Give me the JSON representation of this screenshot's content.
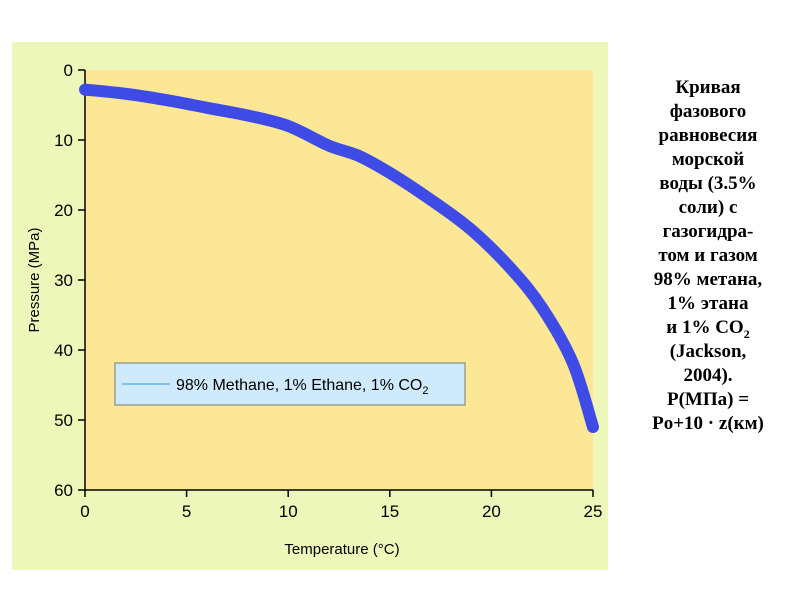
{
  "chart_data": {
    "type": "line",
    "xlabel": "Temperature (°C)",
    "ylabel": "Pressure (MPa)",
    "x_ticks": [
      0,
      5,
      10,
      15,
      20,
      25
    ],
    "y_ticks": [
      0,
      10,
      20,
      30,
      40,
      50,
      60
    ],
    "xlim": [
      0,
      25
    ],
    "ylim": [
      0,
      60
    ],
    "y_inverted": true,
    "grid": false,
    "legend_position": "lower-left",
    "legend_text_main": "98% Methane, 1% Ethane, 1% CO",
    "legend_text_sub": "2",
    "series": [
      {
        "name": "98% Methane, 1% Ethane, 1% CO2",
        "x": [
          0,
          2,
          4,
          6,
          8,
          10,
          12,
          13.5,
          15,
          17,
          19,
          21,
          22.5,
          24,
          25
        ],
        "y": [
          2.8,
          3.4,
          4.3,
          5.4,
          6.5,
          8.0,
          10.8,
          12.3,
          14.7,
          18.5,
          22.8,
          28.5,
          34.0,
          41.8,
          51.0
        ]
      }
    ],
    "colors": {
      "plot_background": "#fbe795",
      "figure_background": "#eef7ba",
      "line": "#3f4be6",
      "legend_background": "#cfeafb",
      "legend_line": "#7fc1ea"
    }
  },
  "caption": {
    "lines": [
      "Кривая",
      "фазового",
      "равновесия",
      "морской",
      "воды (3.5%",
      "соли) с",
      "газогидра-",
      "том и газом",
      "98% метана,",
      "1% этана",
      "и 1% CO",
      "(Jackson,",
      "2004).",
      "P(МПа) =",
      "Po+10 · z(км)"
    ],
    "co2_subscript": "2"
  }
}
